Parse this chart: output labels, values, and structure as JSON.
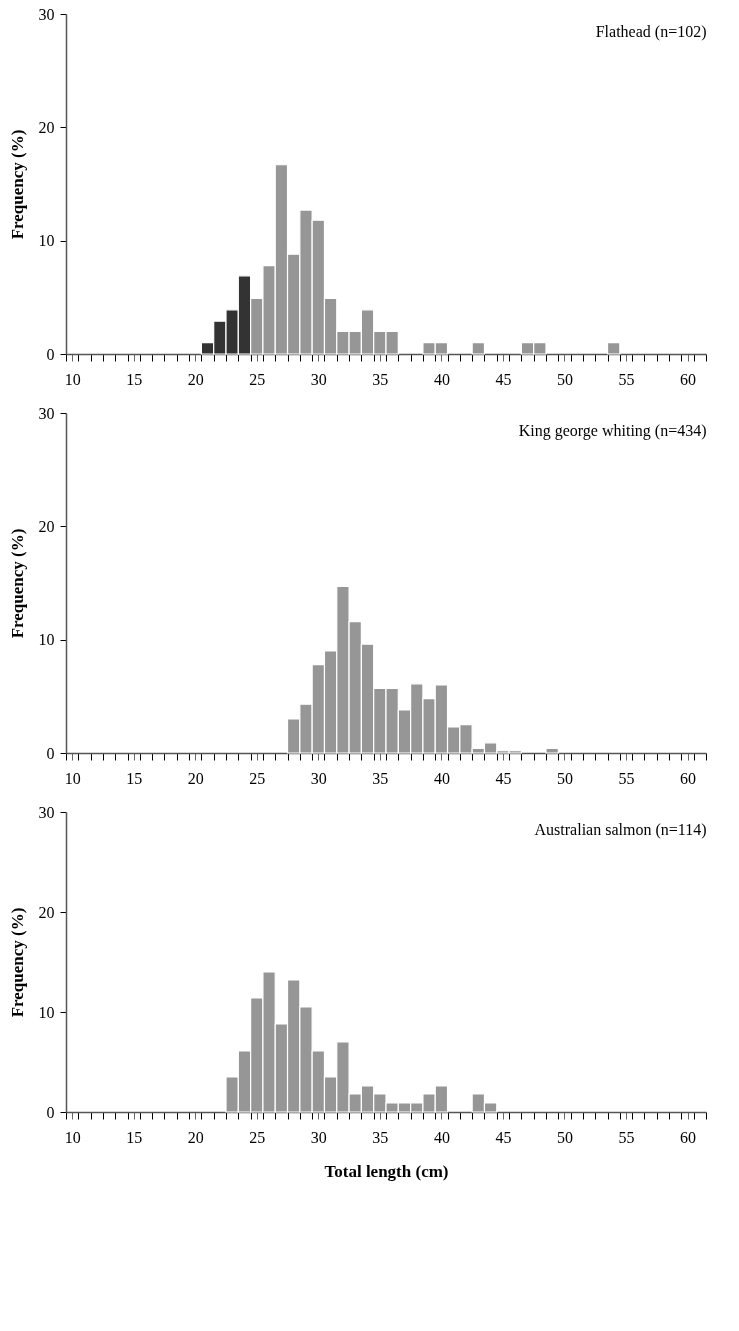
{
  "chart_data": [
    {
      "type": "histogram",
      "title": "Flathead  (n=102)",
      "ylabel": "Frequency (%)",
      "bins": [
        20.5,
        21.5,
        22.5,
        23.5,
        24.5,
        25.5,
        26.5,
        27.5,
        28.5,
        29.5,
        30.5,
        31.5,
        32.5,
        33.5,
        34.5,
        35.5,
        36.5,
        37.5,
        38.5,
        39.5,
        40.5,
        41.5,
        42.5,
        43.5,
        44.5,
        45.5,
        46.5,
        47.5,
        48.5,
        49.5,
        50.5,
        51.5,
        52.5,
        53.5,
        54.5
      ],
      "values": [
        1.0,
        2.9,
        3.9,
        6.9,
        4.9,
        7.8,
        16.7,
        8.8,
        12.7,
        11.8,
        4.9,
        2.0,
        2.0,
        3.9,
        2.0,
        2.0,
        0,
        0,
        1.0,
        1.0,
        0,
        0,
        1.0,
        0,
        0,
        0,
        1.0,
        1.0,
        0,
        0,
        0,
        0,
        0,
        1.0
      ],
      "colors": [
        "#333333",
        "#333333",
        "#333333",
        "#333333",
        "#969696",
        "#969696",
        "#969696",
        "#969696",
        "#969696",
        "#969696",
        "#969696",
        "#969696",
        "#969696",
        "#969696",
        "#969696",
        "#969696",
        "#969696",
        "#969696",
        "#969696",
        "#969696",
        "#969696",
        "#969696",
        "#969696",
        "#969696",
        "#969696",
        "#969696",
        "#969696",
        "#969696",
        "#969696",
        "#969696",
        "#969696",
        "#969696",
        "#969696",
        "#969696"
      ],
      "xlim": [
        9.5,
        61.5
      ],
      "xticks": [
        10,
        15,
        20,
        25,
        30,
        35,
        40,
        45,
        50,
        55,
        60,
        {
          "value": 9.5,
          "label": null
        },
        {
          "value": 10.5,
          "label": null
        },
        {
          "value": 11.5,
          "label": null
        },
        {
          "value": 12.5,
          "label": null
        },
        {
          "value": 13.5,
          "label": null
        },
        {
          "value": 14.5,
          "label": null
        },
        {
          "value": 15.5,
          "label": null
        },
        {
          "value": 16.5,
          "label": null
        },
        {
          "value": 17.5,
          "label": null
        },
        {
          "value": 18.5,
          "label": null
        },
        {
          "value": 19.5,
          "label": null
        },
        {
          "value": 20.5,
          "label": null
        },
        {
          "value": 21.5,
          "label": null
        },
        {
          "value": 22.5,
          "label": null
        },
        {
          "value": 23.5,
          "label": null
        },
        {
          "value": 24.5,
          "label": null
        },
        {
          "value": 25.5,
          "label": null
        },
        {
          "value": 26.5,
          "label": null
        },
        {
          "value": 27.5,
          "label": null
        },
        {
          "value": 28.5,
          "label": null
        },
        {
          "value": 29.5,
          "label": null
        },
        {
          "value": 30.5,
          "label": null
        },
        {
          "value": 31.5,
          "label": null
        },
        {
          "value": 32.5,
          "label": null
        },
        {
          "value": 33.5,
          "label": null
        },
        {
          "value": 34.5,
          "label": null
        },
        {
          "value": 35.5,
          "label": null
        },
        {
          "value": 36.5,
          "label": null
        },
        {
          "value": 37.5,
          "label": null
        },
        {
          "value": 38.5,
          "label": null
        },
        {
          "value": 39.5,
          "label": null
        },
        {
          "value": 40.5,
          "label": null
        },
        {
          "value": 41.5,
          "label": null
        },
        {
          "value": 42.5,
          "label": null
        },
        {
          "value": 43.5,
          "label": null
        },
        {
          "value": 44.5,
          "label": null
        },
        {
          "value": 45.5,
          "label": null
        },
        {
          "value": 46.5,
          "label": null
        },
        {
          "value": 47.5,
          "label": null
        },
        {
          "value": 48.5,
          "label": null
        },
        {
          "value": 49.5,
          "label": null
        },
        {
          "value": 50.5,
          "label": null
        },
        {
          "value": 51.5,
          "label": null
        },
        {
          "value": 52.5,
          "label": null
        },
        {
          "value": 53.5,
          "label": null
        },
        {
          "value": 54.5,
          "label": null
        },
        {
          "value": 55.5,
          "label": null
        },
        {
          "value": 56.5,
          "label": null
        },
        {
          "value": 57.5,
          "label": null
        },
        {
          "value": 58.5,
          "label": null
        },
        {
          "value": 59.5,
          "label": null
        },
        {
          "value": 60.5,
          "label": null
        },
        {
          "value": 61.5,
          "label": null
        }
      ],
      "ylim": [
        0,
        30
      ],
      "yticks": [
        0,
        10,
        20,
        30
      ]
    },
    {
      "type": "histogram",
      "title": "King george whiting (n=434)",
      "ylabel": "Frequency (%)",
      "bins": [
        27.5,
        28.5,
        29.5,
        30.5,
        31.5,
        32.5,
        33.5,
        34.5,
        35.5,
        36.5,
        37.5,
        38.5,
        39.5,
        40.5,
        41.5,
        42.5,
        43.5,
        44.5,
        45.5,
        46.5,
        47.5,
        48.5,
        49.5
      ],
      "values": [
        3.0,
        4.3,
        7.8,
        9.0,
        14.7,
        11.6,
        9.6,
        5.7,
        5.7,
        3.8,
        6.1,
        4.8,
        6.0,
        2.3,
        2.5,
        0.4,
        0.9,
        0.2,
        0.2,
        0,
        0,
        0.4
      ],
      "color": "#969696",
      "xlim": [
        9.5,
        61.5
      ],
      "xticks": [
        10,
        15,
        20,
        25,
        30,
        35,
        40,
        45,
        50,
        55,
        60,
        {
          "value": 9.5,
          "label": null
        },
        {
          "value": 10.5,
          "label": null
        },
        {
          "value": 11.5,
          "label": null
        },
        {
          "value": 12.5,
          "label": null
        },
        {
          "value": 13.5,
          "label": null
        },
        {
          "value": 14.5,
          "label": null
        },
        {
          "value": 15.5,
          "label": null
        },
        {
          "value": 16.5,
          "label": null
        },
        {
          "value": 17.5,
          "label": null
        },
        {
          "value": 18.5,
          "label": null
        },
        {
          "value": 19.5,
          "label": null
        },
        {
          "value": 20.5,
          "label": null
        },
        {
          "value": 21.5,
          "label": null
        },
        {
          "value": 22.5,
          "label": null
        },
        {
          "value": 23.5,
          "label": null
        },
        {
          "value": 24.5,
          "label": null
        },
        {
          "value": 25.5,
          "label": null
        },
        {
          "value": 26.5,
          "label": null
        },
        {
          "value": 27.5,
          "label": null
        },
        {
          "value": 28.5,
          "label": null
        },
        {
          "value": 29.5,
          "label": null
        },
        {
          "value": 30.5,
          "label": null
        },
        {
          "value": 31.5,
          "label": null
        },
        {
          "value": 32.5,
          "label": null
        },
        {
          "value": 33.5,
          "label": null
        },
        {
          "value": 34.5,
          "label": null
        },
        {
          "value": 35.5,
          "label": null
        },
        {
          "value": 36.5,
          "label": null
        },
        {
          "value": 37.5,
          "label": null
        },
        {
          "value": 38.5,
          "label": null
        },
        {
          "value": 39.5,
          "label": null
        },
        {
          "value": 40.5,
          "label": null
        },
        {
          "value": 41.5,
          "label": null
        },
        {
          "value": 42.5,
          "label": null
        },
        {
          "value": 43.5,
          "label": null
        },
        {
          "value": 44.5,
          "label": null
        },
        {
          "value": 45.5,
          "label": null
        },
        {
          "value": 46.5,
          "label": null
        },
        {
          "value": 47.5,
          "label": null
        },
        {
          "value": 48.5,
          "label": null
        },
        {
          "value": 49.5,
          "label": null
        },
        {
          "value": 50.5,
          "label": null
        },
        {
          "value": 51.5,
          "label": null
        },
        {
          "value": 52.5,
          "label": null
        },
        {
          "value": 53.5,
          "label": null
        },
        {
          "value": 54.5,
          "label": null
        },
        {
          "value": 55.5,
          "label": null
        },
        {
          "value": 56.5,
          "label": null
        },
        {
          "value": 57.5,
          "label": null
        },
        {
          "value": 58.5,
          "label": null
        },
        {
          "value": 59.5,
          "label": null
        },
        {
          "value": 60.5,
          "label": null
        },
        {
          "value": 61.5,
          "label": null
        }
      ],
      "ylim": [
        0,
        30
      ],
      "yticks": [
        0,
        10,
        20,
        30
      ]
    },
    {
      "type": "histogram",
      "title": "Australian salmon (n=114)",
      "ylabel": "Frequency (%)",
      "xlabel": "Total length (cm)",
      "bins": [
        22.5,
        23.5,
        24.5,
        25.5,
        26.5,
        27.5,
        28.5,
        29.5,
        30.5,
        31.5,
        32.5,
        33.5,
        34.5,
        35.5,
        36.5,
        37.5,
        38.5,
        39.5,
        40.5,
        41.5,
        42.5,
        43.5,
        44.5
      ],
      "values": [
        3.5,
        6.1,
        11.4,
        14.0,
        8.8,
        13.2,
        10.5,
        6.1,
        3.5,
        7.0,
        1.8,
        2.6,
        1.8,
        0.9,
        0.9,
        0.9,
        1.8,
        2.6,
        0,
        0,
        1.8,
        0.9
      ],
      "color": "#969696",
      "xlim": [
        9.5,
        61.5
      ],
      "xticks": [
        10,
        15,
        20,
        25,
        30,
        35,
        40,
        45,
        50,
        55,
        60,
        {
          "value": 9.5,
          "label": null
        },
        {
          "value": 10.5,
          "label": null
        },
        {
          "value": 11.5,
          "label": null
        },
        {
          "value": 12.5,
          "label": null
        },
        {
          "value": 13.5,
          "label": null
        },
        {
          "value": 14.5,
          "label": null
        },
        {
          "value": 15.5,
          "label": null
        },
        {
          "value": 16.5,
          "label": null
        },
        {
          "value": 17.5,
          "label": null
        },
        {
          "value": 18.5,
          "label": null
        },
        {
          "value": 19.5,
          "label": null
        },
        {
          "value": 20.5,
          "label": null
        },
        {
          "value": 21.5,
          "label": null
        },
        {
          "value": 22.5,
          "label": null
        },
        {
          "value": 23.5,
          "label": null
        },
        {
          "value": 24.5,
          "label": null
        },
        {
          "value": 25.5,
          "label": null
        },
        {
          "value": 26.5,
          "label": null
        },
        {
          "value": 27.5,
          "label": null
        },
        {
          "value": 28.5,
          "label": null
        },
        {
          "value": 29.5,
          "label": null
        },
        {
          "value": 30.5,
          "label": null
        },
        {
          "value": 31.5,
          "label": null
        },
        {
          "value": 32.5,
          "label": null
        },
        {
          "value": 33.5,
          "label": null
        },
        {
          "value": 34.5,
          "label": null
        },
        {
          "value": 35.5,
          "label": null
        },
        {
          "value": 36.5,
          "label": null
        },
        {
          "value": 37.5,
          "label": null
        },
        {
          "value": 38.5,
          "label": null
        },
        {
          "value": 39.5,
          "label": null
        },
        {
          "value": 40.5,
          "label": null
        },
        {
          "value": 41.5,
          "label": null
        },
        {
          "value": 42.5,
          "label": null
        },
        {
          "value": 43.5,
          "label": null
        },
        {
          "value": 44.5,
          "label": null
        },
        {
          "value": 45.5,
          "label": null
        },
        {
          "value": 46.5,
          "label": null
        },
        {
          "value": 47.5,
          "label": null
        },
        {
          "value": 48.5,
          "label": null
        },
        {
          "value": 49.5,
          "label": null
        },
        {
          "value": 50.5,
          "label": null
        },
        {
          "value": 51.5,
          "label": null
        },
        {
          "value": 52.5,
          "label": null
        },
        {
          "value": 53.5,
          "label": null
        },
        {
          "value": 54.5,
          "label": null
        },
        {
          "value": 55.5,
          "label": null
        },
        {
          "value": 56.5,
          "label": null
        },
        {
          "value": 57.5,
          "label": null
        },
        {
          "value": 58.5,
          "label": null
        },
        {
          "value": 59.5,
          "label": null
        },
        {
          "value": 60.5,
          "label": null
        },
        {
          "value": 61.5,
          "label": null
        }
      ],
      "ylim": [
        0,
        30
      ],
      "yticks": [
        0,
        10,
        20,
        30
      ]
    }
  ]
}
